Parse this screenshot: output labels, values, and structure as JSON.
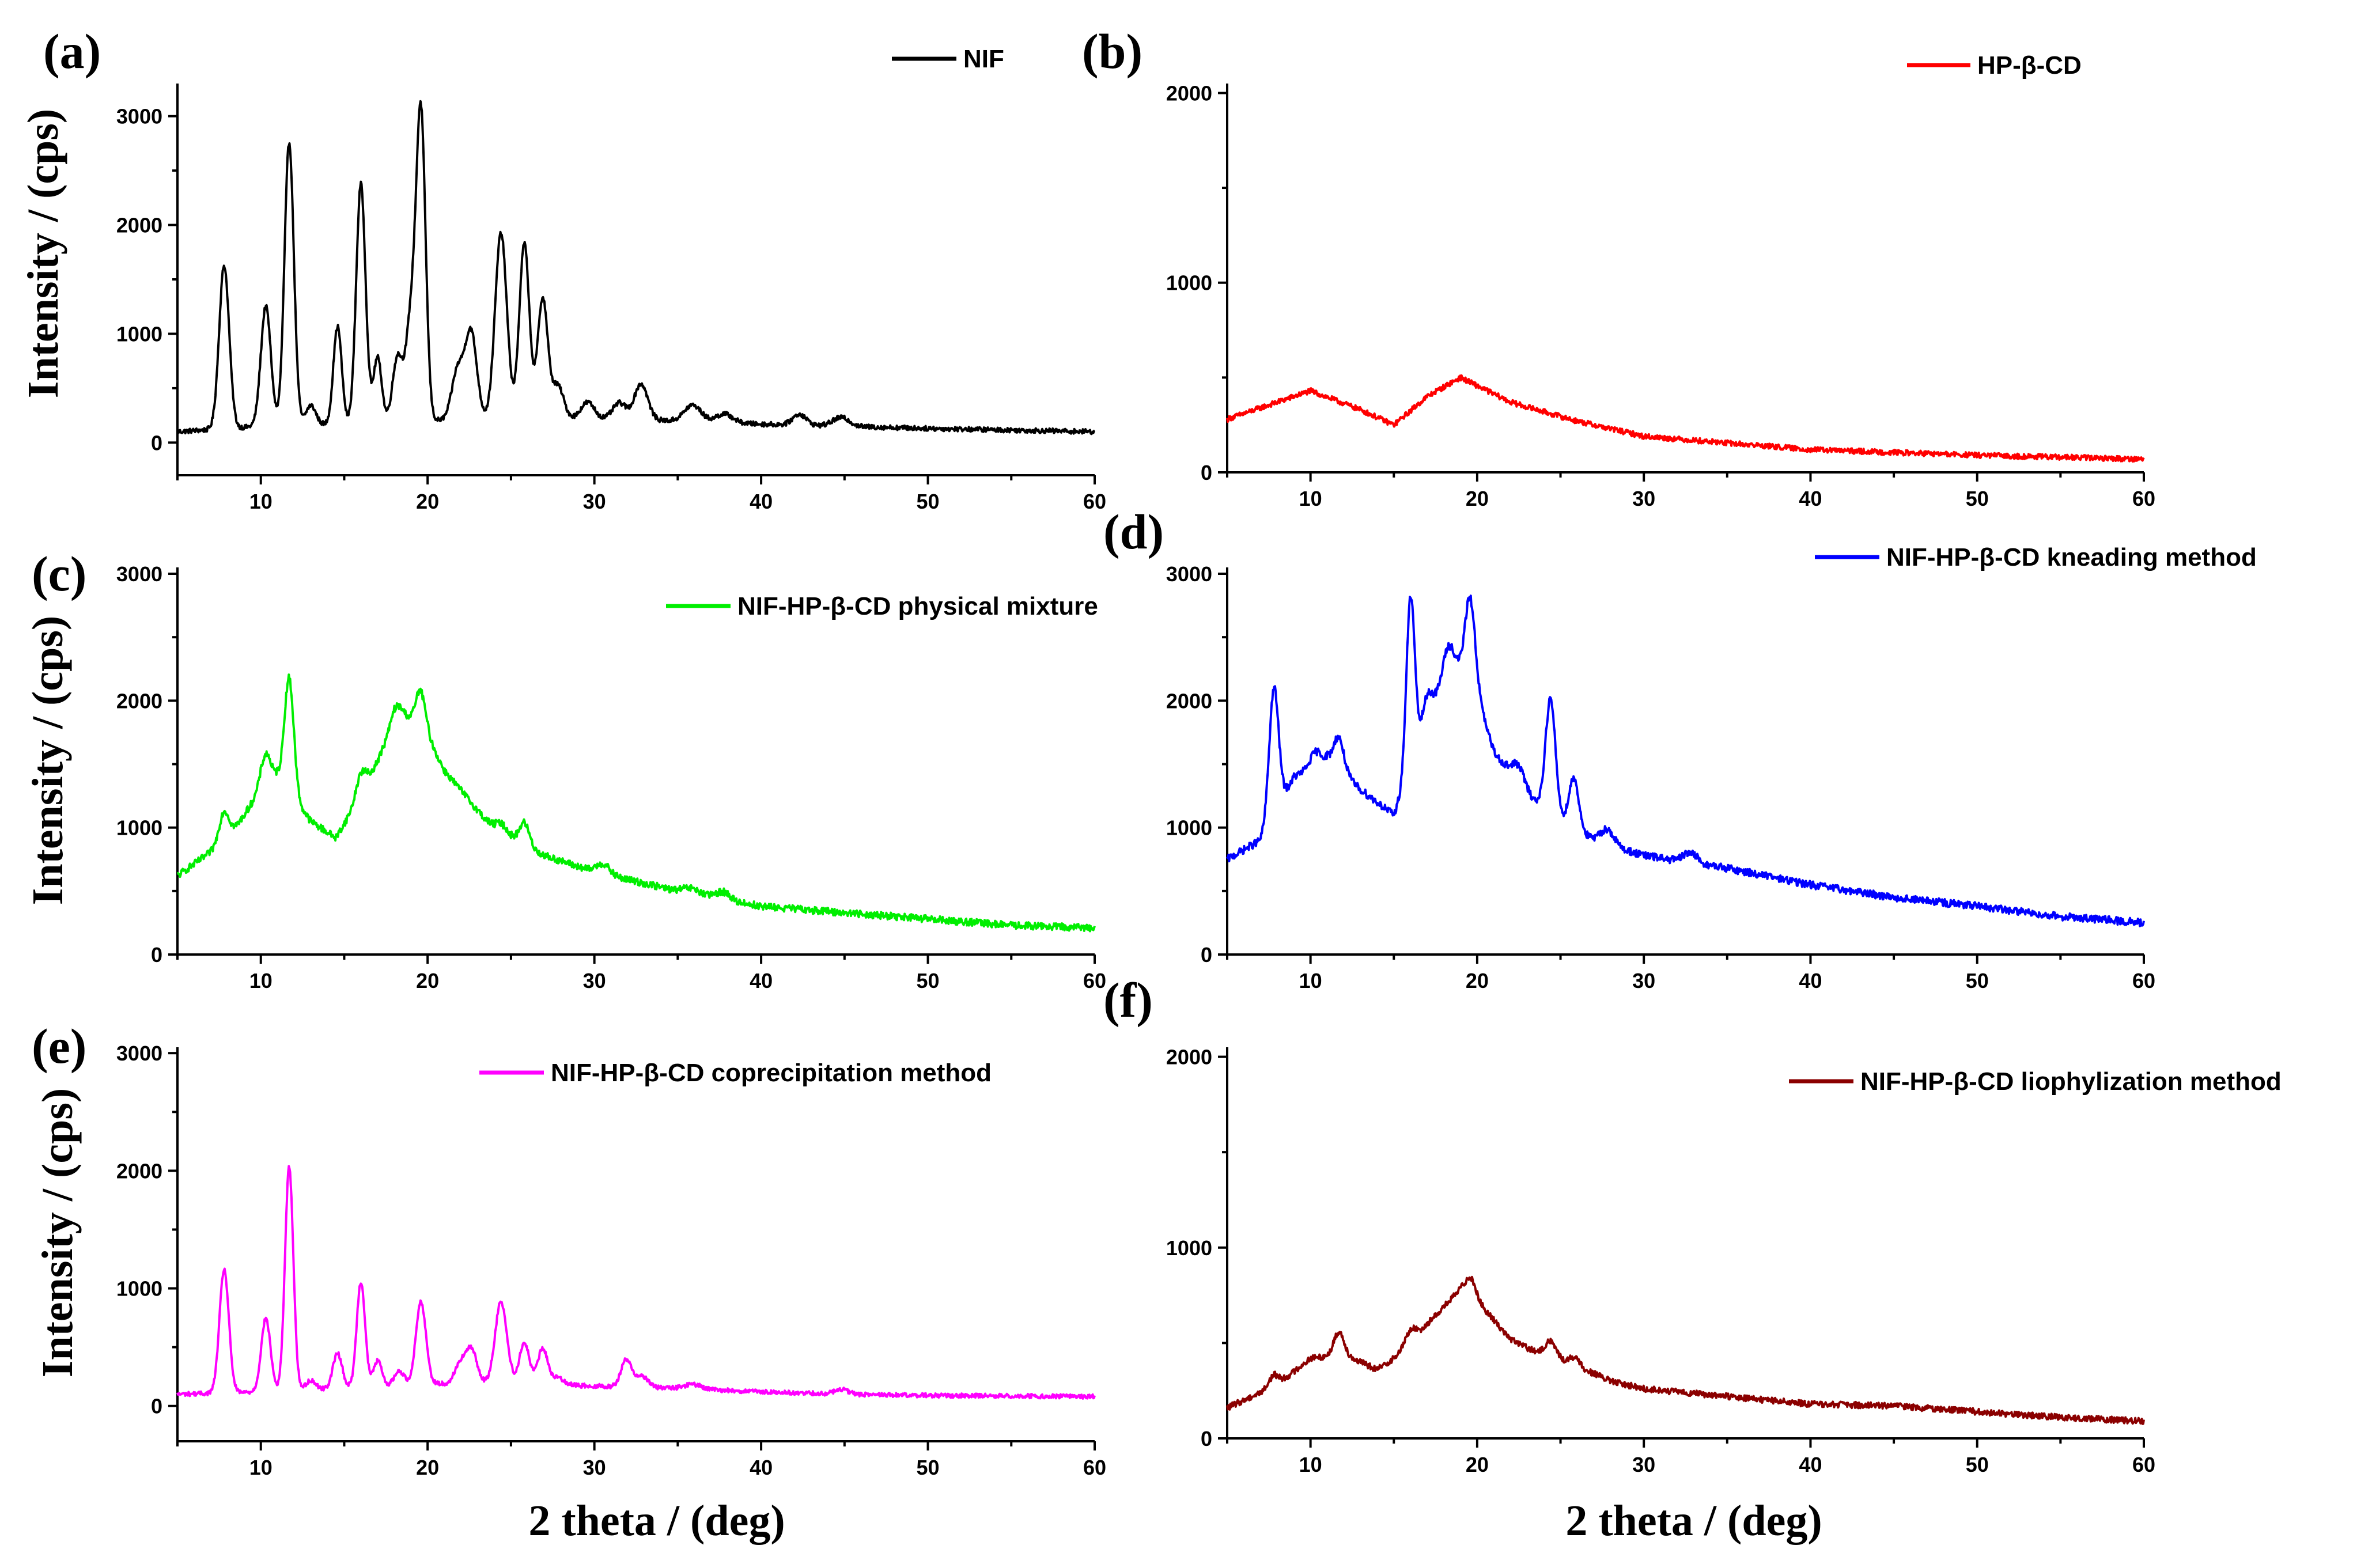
{
  "figure": {
    "xlabel": "2 theta / (deg)",
    "ylabel": "Intensity / (cps)"
  },
  "chart_data": [
    {
      "panel_label": "(a)",
      "type": "line",
      "title": "",
      "xlabel": "",
      "ylabel": "Intensity / (cps)",
      "xlim": [
        5,
        60
      ],
      "ylim": [
        -300,
        3300
      ],
      "xticks": [
        10,
        20,
        30,
        40,
        50,
        60
      ],
      "yticks": [
        0,
        1000,
        2000,
        3000
      ],
      "legend": "top-right",
      "series": [
        {
          "name": "NIF",
          "color": "#000000",
          "baseline": [
            [
              5,
              100
            ],
            [
              10,
              150
            ],
            [
              15,
              170
            ],
            [
              20,
              200
            ],
            [
              25,
              230
            ],
            [
              30,
              220
            ],
            [
              35,
              200
            ],
            [
              40,
              170
            ],
            [
              45,
              150
            ],
            [
              50,
              130
            ],
            [
              55,
              115
            ],
            [
              60,
              100
            ]
          ],
          "peaks": [
            [
              7.8,
              1500,
              0.3
            ],
            [
              10.3,
              1100,
              0.3
            ],
            [
              11.7,
              2600,
              0.28
            ],
            [
              13.0,
              180,
              0.3
            ],
            [
              14.6,
              900,
              0.25
            ],
            [
              16.0,
              2200,
              0.28
            ],
            [
              17.0,
              600,
              0.25
            ],
            [
              18.2,
              600,
              0.3
            ],
            [
              19.0,
              900,
              0.3
            ],
            [
              19.6,
              2800,
              0.28
            ],
            [
              21.8,
              450,
              0.35
            ],
            [
              22.6,
              800,
              0.35
            ],
            [
              24.4,
              1700,
              0.35
            ],
            [
              25.8,
              1600,
              0.3
            ],
            [
              26.9,
              1100,
              0.3
            ],
            [
              27.8,
              300,
              0.35
            ],
            [
              29.6,
              150,
              0.4
            ],
            [
              31.5,
              150,
              0.4
            ],
            [
              32.8,
              330,
              0.4
            ],
            [
              35.9,
              150,
              0.5
            ],
            [
              37.8,
              80,
              0.5
            ],
            [
              42.3,
              100,
              0.4
            ],
            [
              44.8,
              80,
              0.5
            ]
          ],
          "noise": 22
        }
      ]
    },
    {
      "panel_label": "(b)",
      "type": "line",
      "title": "",
      "xlabel": "",
      "ylabel": "",
      "xlim": [
        5,
        60
      ],
      "ylim": [
        0,
        2050
      ],
      "xticks": [
        10,
        20,
        30,
        40,
        50,
        60
      ],
      "yticks": [
        0,
        1000,
        2000
      ],
      "legend": "top-right",
      "series": [
        {
          "name": "HP-β-CD",
          "color": "#ff0000",
          "baseline": [
            [
              5,
              280
            ],
            [
              10,
              430
            ],
            [
              13,
              330
            ],
            [
              15,
              250
            ],
            [
              17,
              400
            ],
            [
              19,
              500
            ],
            [
              22,
              370
            ],
            [
              26,
              270
            ],
            [
              30,
              190
            ],
            [
              40,
              120
            ],
            [
              50,
              90
            ],
            [
              60,
              70
            ]
          ],
          "peaks": [],
          "noise": 14
        }
      ]
    },
    {
      "panel_label": "(c)",
      "type": "line",
      "title": "",
      "xlabel": "",
      "ylabel": "Intensity / (cps)",
      "xlim": [
        5,
        60
      ],
      "ylim": [
        0,
        3050
      ],
      "xticks": [
        10,
        20,
        30,
        40,
        50,
        60
      ],
      "yticks": [
        0,
        1000,
        2000,
        3000
      ],
      "legend": "top-right",
      "series": [
        {
          "name": "NIF-HP-β-CD physical mixture",
          "color": "#00ee00",
          "baseline": [
            [
              5,
              620
            ],
            [
              8,
              900
            ],
            [
              10,
              1300
            ],
            [
              11,
              1400
            ],
            [
              13,
              1050
            ],
            [
              14.5,
              920
            ],
            [
              16,
              1250
            ],
            [
              18,
              1800
            ],
            [
              19.5,
              1850
            ],
            [
              21,
              1450
            ],
            [
              24,
              980
            ],
            [
              27,
              780
            ],
            [
              30,
              650
            ],
            [
              35,
              500
            ],
            [
              40,
              380
            ],
            [
              45,
              330
            ],
            [
              50,
              280
            ],
            [
              55,
              230
            ],
            [
              60,
              210
            ]
          ],
          "peaks": [
            [
              7.8,
              250,
              0.3
            ],
            [
              10.3,
              250,
              0.3
            ],
            [
              11.7,
              900,
              0.28
            ],
            [
              16.0,
              180,
              0.3
            ],
            [
              18.2,
              150,
              0.4
            ],
            [
              19.6,
              250,
              0.3
            ],
            [
              24.4,
              80,
              0.4
            ],
            [
              25.8,
              180,
              0.3
            ],
            [
              30.5,
              80,
              0.4
            ],
            [
              35.8,
              40,
              0.5
            ],
            [
              37.7,
              60,
              0.4
            ]
          ],
          "noise": 28
        }
      ]
    },
    {
      "panel_label": "(d)",
      "type": "line",
      "title": "",
      "xlabel": "",
      "ylabel": "",
      "xlim": [
        5,
        60
      ],
      "ylim": [
        0,
        3050
      ],
      "xticks": [
        10,
        20,
        30,
        40,
        50,
        60
      ],
      "yticks": [
        0,
        1000,
        2000,
        3000
      ],
      "legend": "top-right",
      "series": [
        {
          "name": "NIF-HP-β-CD kneading method",
          "color": "#0000ff",
          "baseline": [
            [
              5,
              750
            ],
            [
              7,
              900
            ],
            [
              9,
              1400
            ],
            [
              11,
              1550
            ],
            [
              13,
              1300
            ],
            [
              15,
              1100
            ],
            [
              17,
              1850
            ],
            [
              18.5,
              2300
            ],
            [
              19.5,
              2250
            ],
            [
              21,
              1600
            ],
            [
              23,
              1250
            ],
            [
              25,
              1050
            ],
            [
              27,
              900
            ],
            [
              30,
              780
            ],
            [
              35,
              680
            ],
            [
              40,
              550
            ],
            [
              45,
              450
            ],
            [
              50,
              380
            ],
            [
              55,
              300
            ],
            [
              60,
              250
            ]
          ],
          "peaks": [
            [
              7.8,
              1000,
              0.28
            ],
            [
              10.3,
              100,
              0.3
            ],
            [
              11.7,
              250,
              0.3
            ],
            [
              16.0,
              1350,
              0.25
            ],
            [
              17.0,
              200,
              0.3
            ],
            [
              18.2,
              200,
              0.3
            ],
            [
              19.6,
              600,
              0.3
            ],
            [
              22.5,
              150,
              0.4
            ],
            [
              24.4,
              900,
              0.3
            ],
            [
              25.8,
              400,
              0.3
            ],
            [
              27.8,
              120,
              0.4
            ],
            [
              32.8,
              80,
              0.4
            ]
          ],
          "noise": 30
        }
      ]
    },
    {
      "panel_label": "(e)",
      "type": "line",
      "title": "",
      "xlabel": "",
      "ylabel": "Intensity / (cps)",
      "xlim": [
        5,
        60
      ],
      "ylim": [
        -300,
        3050
      ],
      "xticks": [
        10,
        20,
        30,
        40,
        50,
        60
      ],
      "yticks": [
        0,
        1000,
        2000,
        3000
      ],
      "legend": "top-right",
      "series": [
        {
          "name": "NIF-HP-β-CD coprecipitation method",
          "color": "#ff00ff",
          "baseline": [
            [
              5,
              100
            ],
            [
              10,
              120
            ],
            [
              15,
              150
            ],
            [
              20,
              190
            ],
            [
              25,
              190
            ],
            [
              30,
              170
            ],
            [
              35,
              150
            ],
            [
              40,
              120
            ],
            [
              45,
              100
            ],
            [
              50,
              90
            ],
            [
              55,
              85
            ],
            [
              60,
              80
            ]
          ],
          "peaks": [
            [
              7.8,
              1050,
              0.28
            ],
            [
              10.3,
              620,
              0.28
            ],
            [
              11.7,
              1900,
              0.25
            ],
            [
              13.0,
              80,
              0.3
            ],
            [
              14.6,
              300,
              0.28
            ],
            [
              16.0,
              900,
              0.25
            ],
            [
              17.0,
              220,
              0.25
            ],
            [
              18.3,
              120,
              0.3
            ],
            [
              19.6,
              700,
              0.3
            ],
            [
              21.9,
              150,
              0.3
            ],
            [
              22.6,
              300,
              0.35
            ],
            [
              24.4,
              700,
              0.35
            ],
            [
              25.8,
              350,
              0.3
            ],
            [
              26.9,
              300,
              0.3
            ],
            [
              27.8,
              60,
              0.4
            ],
            [
              31.9,
              230,
              0.3
            ],
            [
              32.8,
              100,
              0.4
            ],
            [
              35.9,
              40,
              0.5
            ],
            [
              44.8,
              40,
              0.4
            ]
          ],
          "noise": 18
        }
      ]
    },
    {
      "panel_label": "(f)",
      "type": "line",
      "title": "",
      "xlabel": "",
      "ylabel": "",
      "xlim": [
        5,
        60
      ],
      "ylim": [
        0,
        2050
      ],
      "xticks": [
        10,
        20,
        30,
        40,
        50,
        60
      ],
      "yticks": [
        0,
        1000,
        2000
      ],
      "legend": "top-right",
      "series": [
        {
          "name": "NIF-HP-β-CD liophylization method",
          "color": "#8b0000",
          "baseline": [
            [
              5,
              160
            ],
            [
              8,
              280
            ],
            [
              10,
              420
            ],
            [
              12,
              440
            ],
            [
              14,
              360
            ],
            [
              15,
              420
            ],
            [
              17,
              600
            ],
            [
              19,
              780
            ],
            [
              20,
              720
            ],
            [
              22,
              520
            ],
            [
              24,
              430
            ],
            [
              26,
              380
            ],
            [
              28,
              300
            ],
            [
              30,
              260
            ],
            [
              35,
              220
            ],
            [
              40,
              180
            ],
            [
              45,
              170
            ],
            [
              50,
              140
            ],
            [
              55,
              110
            ],
            [
              60,
              90
            ]
          ],
          "peaks": [
            [
              7.8,
              60,
              0.3
            ],
            [
              11.7,
              120,
              0.3
            ],
            [
              16.0,
              60,
              0.3
            ],
            [
              19.6,
              100,
              0.3
            ],
            [
              24.4,
              90,
              0.35
            ],
            [
              25.8,
              40,
              0.3
            ]
          ],
          "noise": 16
        }
      ]
    }
  ]
}
